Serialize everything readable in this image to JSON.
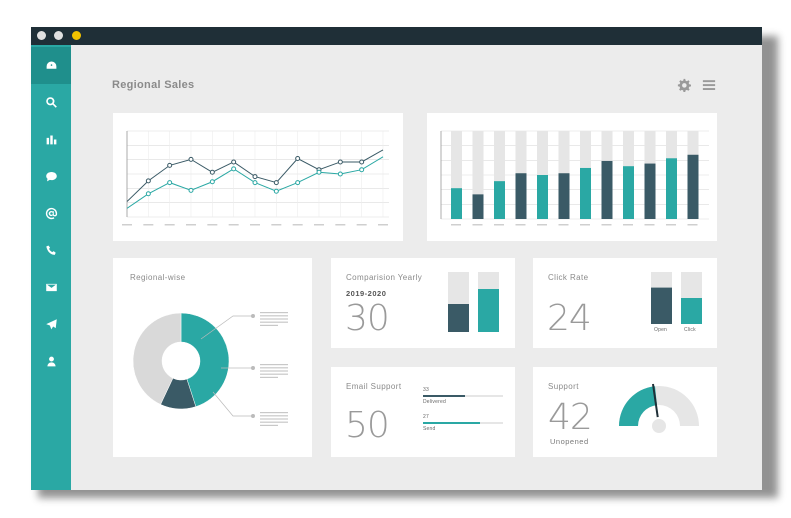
{
  "window": {
    "dots": [
      {
        "name": "close",
        "color": "#e0e0e0"
      },
      {
        "name": "minimize",
        "color": "#e0e0e0"
      },
      {
        "name": "maximize",
        "color": "#f2c200"
      }
    ]
  },
  "sidebar": {
    "items": [
      {
        "icon": "dashboard-icon",
        "active": true
      },
      {
        "icon": "search-icon"
      },
      {
        "icon": "bar-chart-icon"
      },
      {
        "icon": "chat-icon"
      },
      {
        "icon": "at-icon"
      },
      {
        "icon": "phone-icon"
      },
      {
        "icon": "mail-icon"
      },
      {
        "icon": "send-icon"
      },
      {
        "icon": "user-icon"
      }
    ]
  },
  "header": {
    "title": "Regional Sales",
    "settings_icon": "gear-icon",
    "menu_icon": "hamburger-menu-icon"
  },
  "colors": {
    "teal": "#2aa8a4",
    "dark_slate": "#3a5a66",
    "light_gray": "#e6e6e6"
  },
  "regional_wise": {
    "label": "Regional-wise"
  },
  "comparison": {
    "label": "Comparision Yearly",
    "period": "2019-2020",
    "value": "30"
  },
  "click_rate": {
    "label": "Click Rate",
    "value": "24",
    "open_label": "Open",
    "click_label": "Click"
  },
  "email_support": {
    "label": "Email Support",
    "value": "50",
    "delivered_count": "33",
    "delivered_label": "Delivered",
    "send_count": "27",
    "send_label": "Send"
  },
  "support": {
    "label": "Support",
    "value": "42",
    "status": "Unopened"
  },
  "chart_data": [
    {
      "type": "line",
      "series": [
        {
          "values": [
            18,
            42,
            60,
            67,
            52,
            64,
            47,
            40,
            68,
            55,
            64,
            64,
            78
          ]
        },
        {
          "values": [
            10,
            27,
            40,
            31,
            41,
            56,
            40,
            30,
            40,
            52,
            50,
            55,
            70
          ]
        }
      ],
      "ylim": [
        0,
        100
      ],
      "grid": true
    },
    {
      "type": "bar",
      "series": [
        {
          "values": [
            35,
            28,
            43,
            52,
            50,
            52,
            58,
            66,
            60,
            63,
            69,
            73
          ]
        },
        {
          "values": [
            100,
            100,
            100,
            100,
            100,
            100,
            100,
            100,
            100,
            100,
            100,
            100
          ]
        }
      ],
      "ylim": [
        0,
        100
      ],
      "grid": true
    },
    {
      "type": "pie",
      "series": [
        {
          "values": [
            45,
            12,
            43
          ]
        }
      ]
    },
    {
      "type": "bar",
      "categories": [
        "Open",
        "Click"
      ],
      "series": [
        {
          "values": [
            70,
            50
          ]
        }
      ],
      "ylim": [
        0,
        100
      ]
    }
  ]
}
